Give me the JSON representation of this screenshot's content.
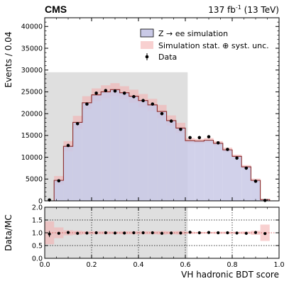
{
  "header": {
    "experiment": "CMS",
    "lumi_value": "137 fb",
    "lumi_exp": "-1",
    "lumi_energy": " (13 TeV)"
  },
  "legend": {
    "signal": "Z → ee simulation",
    "unc": "Simulation stat. ⊕ syst. unc.",
    "data": "Data"
  },
  "colors": {
    "signal_fill": "#c9c9e6",
    "signal_line": "#8b2b2b",
    "unc_fill": "#f4b0b0",
    "shade": "#d4d4d4",
    "data_marker": "#000000"
  },
  "chart_data": [
    {
      "type": "bar",
      "subtype": "histogram",
      "ylabel": "Events / 0.04",
      "xlabel": "",
      "xlim": [
        0,
        1.0
      ],
      "ylim": [
        0,
        42000
      ],
      "yticks": [
        0,
        5000,
        10000,
        15000,
        20000,
        25000,
        30000,
        35000,
        40000
      ],
      "yticklabels": [
        "0",
        "5000",
        "10000",
        "15000",
        "20000",
        "25000",
        "30000",
        "35000",
        "40000"
      ],
      "bin_edges": [
        0.0,
        0.04,
        0.08,
        0.12,
        0.16,
        0.2,
        0.24,
        0.28,
        0.32,
        0.36,
        0.4,
        0.44,
        0.48,
        0.52,
        0.56,
        0.6,
        0.64,
        0.68,
        0.72,
        0.76,
        0.8,
        0.84,
        0.88,
        0.92,
        0.96,
        1.0
      ],
      "simulation": [
        0,
        4700,
        12500,
        18000,
        22500,
        24300,
        25000,
        25500,
        24800,
        24000,
        23000,
        22000,
        20500,
        18400,
        16700,
        13800,
        13700,
        13900,
        13200,
        11700,
        10200,
        7800,
        4700,
        300,
        0
      ],
      "unc_low": [
        0,
        3700,
        11300,
        16500,
        21000,
        22800,
        23500,
        24000,
        23300,
        22500,
        21500,
        20600,
        19000,
        17200,
        15500,
        13200,
        13200,
        13400,
        12700,
        11200,
        9800,
        7400,
        4300,
        200,
        0
      ],
      "unc_high": [
        0,
        5700,
        13700,
        19500,
        24000,
        25800,
        26500,
        27000,
        26300,
        25500,
        24500,
        23400,
        22000,
        19600,
        17900,
        14400,
        14200,
        14400,
        13700,
        12200,
        10600,
        8200,
        5100,
        400,
        0
      ],
      "data_x": [
        0.02,
        0.06,
        0.1,
        0.14,
        0.18,
        0.22,
        0.26,
        0.3,
        0.34,
        0.38,
        0.42,
        0.46,
        0.5,
        0.54,
        0.58,
        0.62,
        0.66,
        0.7,
        0.74,
        0.78,
        0.82,
        0.86,
        0.9,
        0.94
      ],
      "data_y": [
        200,
        4600,
        12700,
        17700,
        22200,
        24700,
        25300,
        25200,
        24700,
        23900,
        23000,
        22200,
        20000,
        18300,
        16400,
        14500,
        14500,
        14700,
        13300,
        11800,
        9800,
        7500,
        4500,
        100
      ],
      "blinded_region": {
        "x": [
          0,
          0.61
        ],
        "y": [
          0,
          29500
        ]
      }
    },
    {
      "type": "scatter",
      "subtype": "ratio",
      "xlabel": "VH hadronic BDT score",
      "ylabel": "Data/MC",
      "xlim": [
        0,
        1.0
      ],
      "ylim": [
        0,
        2.0
      ],
      "xticks": [
        0,
        0.2,
        0.4,
        0.6,
        0.8,
        1.0
      ],
      "xticklabels": [
        "0.0",
        "0.2",
        "0.4",
        "0.6",
        "0.8",
        "1.0"
      ],
      "yticks": [
        0,
        0.5,
        1.0,
        1.5,
        2.0
      ],
      "yticklabels": [
        "0.0",
        "0.5",
        "1.0",
        "1.5",
        "2.0"
      ],
      "grid": true,
      "ratio_x": [
        0.02,
        0.06,
        0.1,
        0.14,
        0.18,
        0.22,
        0.26,
        0.3,
        0.34,
        0.38,
        0.42,
        0.46,
        0.5,
        0.54,
        0.58,
        0.62,
        0.66,
        0.7,
        0.74,
        0.78,
        0.82,
        0.86,
        0.9,
        0.94
      ],
      "ratio_y": [
        0.95,
        0.98,
        1.01,
        0.98,
        0.99,
        1.0,
        1.0,
        0.99,
        0.99,
        1.0,
        1.0,
        1.0,
        0.98,
        0.99,
        0.99,
        1.02,
        1.0,
        1.01,
        1.0,
        1.0,
        0.99,
        0.98,
        1.01,
        0.97
      ],
      "ratio_unc_low": [
        0.55,
        0.79,
        0.9,
        0.92,
        0.94,
        0.94,
        0.94,
        0.95,
        0.94,
        0.94,
        0.94,
        0.94,
        0.93,
        0.94,
        0.93,
        0.96,
        0.97,
        0.97,
        0.96,
        0.96,
        0.96,
        0.95,
        0.92,
        0.68
      ],
      "ratio_unc_high": [
        1.45,
        1.21,
        1.1,
        1.08,
        1.06,
        1.06,
        1.06,
        1.05,
        1.06,
        1.06,
        1.06,
        1.06,
        1.07,
        1.06,
        1.07,
        1.04,
        1.03,
        1.03,
        1.04,
        1.04,
        1.04,
        1.05,
        1.08,
        1.32
      ],
      "blinded_region": {
        "x": [
          0,
          0.61
        ],
        "y": [
          0,
          2.0
        ]
      }
    }
  ]
}
